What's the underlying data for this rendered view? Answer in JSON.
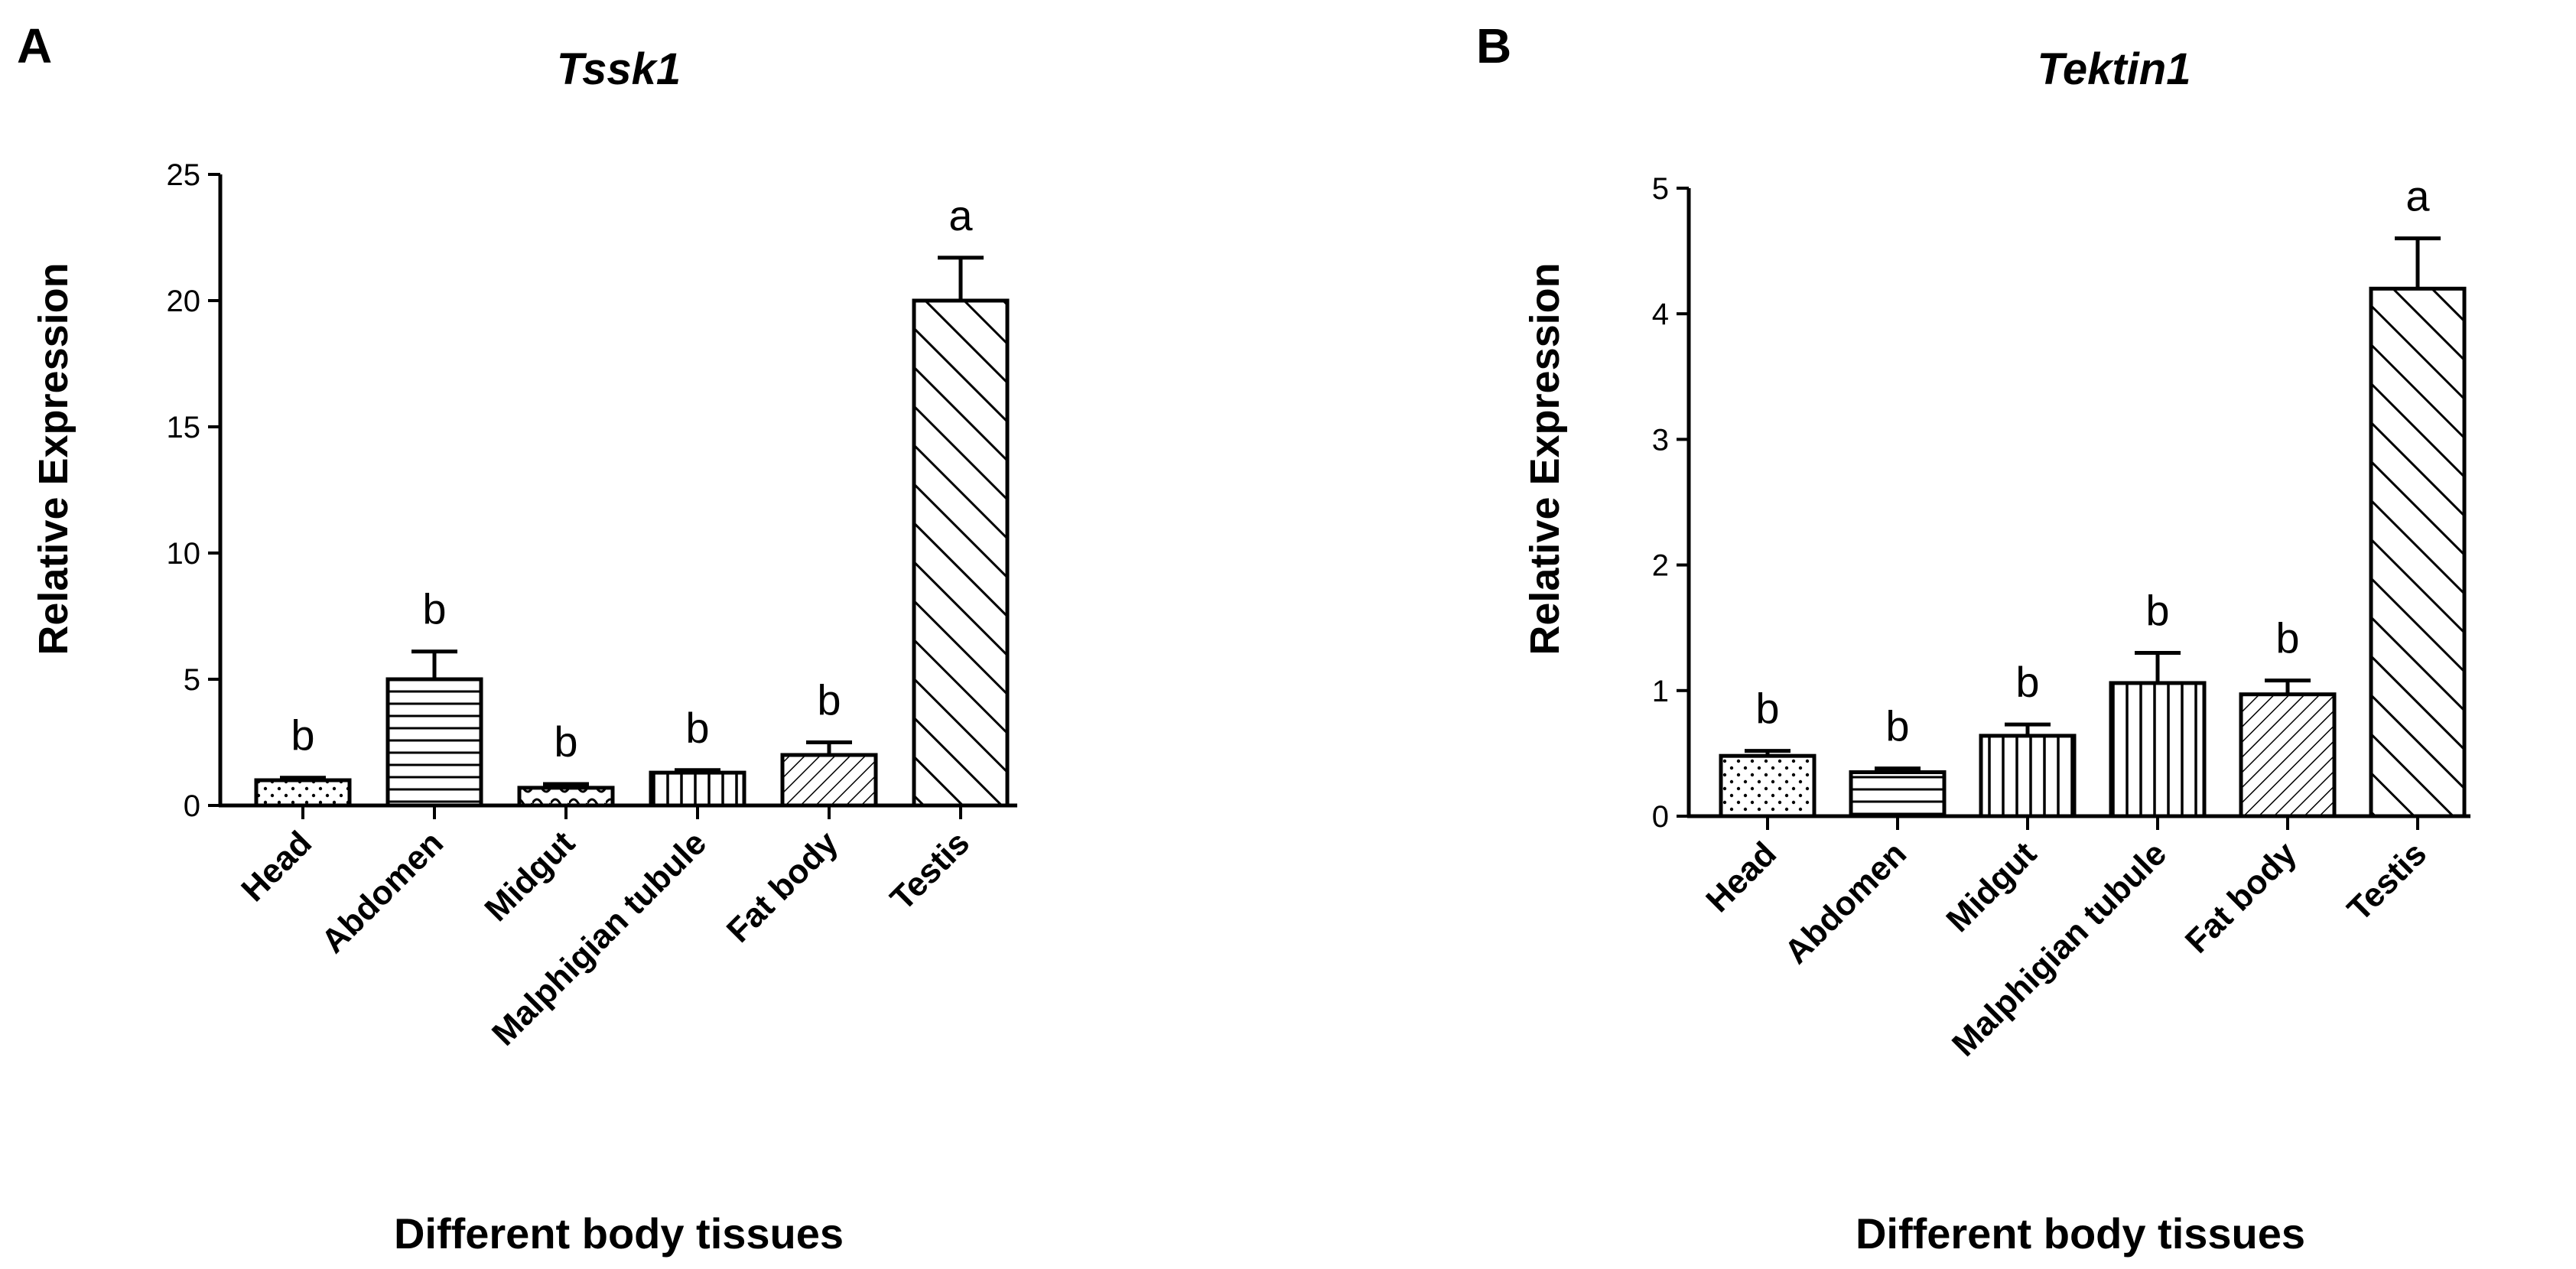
{
  "chart_data": [
    {
      "panel": "A",
      "type": "bar",
      "title": "Tssk1",
      "xlabel": "Different body tissues",
      "ylabel": "Relative Expression",
      "ylim": [
        0,
        25
      ],
      "yticks": [
        0,
        5,
        10,
        15,
        20,
        25
      ],
      "categories": [
        "Head",
        "Abdomen",
        "Midgut",
        "Malphigian tubule",
        "Fat body",
        "Testis"
      ],
      "values": [
        1.0,
        5.0,
        0.7,
        1.3,
        2.0,
        20.0
      ],
      "errors": [
        0.1,
        1.1,
        0.15,
        0.1,
        0.5,
        1.7
      ],
      "significance": [
        "b",
        "b",
        "b",
        "b",
        "b",
        "a"
      ],
      "patterns": [
        "dots",
        "hlines",
        "waves",
        "vlines",
        "fine-diag",
        "diag"
      ]
    },
    {
      "panel": "B",
      "type": "bar",
      "title": "Tektin1",
      "xlabel": "Different body tissues",
      "ylabel": "Relative Expression",
      "ylim": [
        0,
        5
      ],
      "yticks": [
        0,
        1,
        2,
        3,
        4,
        5
      ],
      "categories": [
        "Head",
        "Abdomen",
        "Midgut",
        "Malphigian tubule",
        "Fat body",
        "Testis"
      ],
      "values": [
        0.48,
        0.35,
        0.64,
        1.06,
        0.97,
        4.2
      ],
      "errors": [
        0.04,
        0.03,
        0.09,
        0.24,
        0.11,
        0.4
      ],
      "significance": [
        "b",
        "b",
        "b",
        "b",
        "b",
        "a"
      ],
      "patterns": [
        "dots",
        "hlines",
        "vlines",
        "vlines",
        "fine-diag",
        "diag"
      ]
    }
  ]
}
